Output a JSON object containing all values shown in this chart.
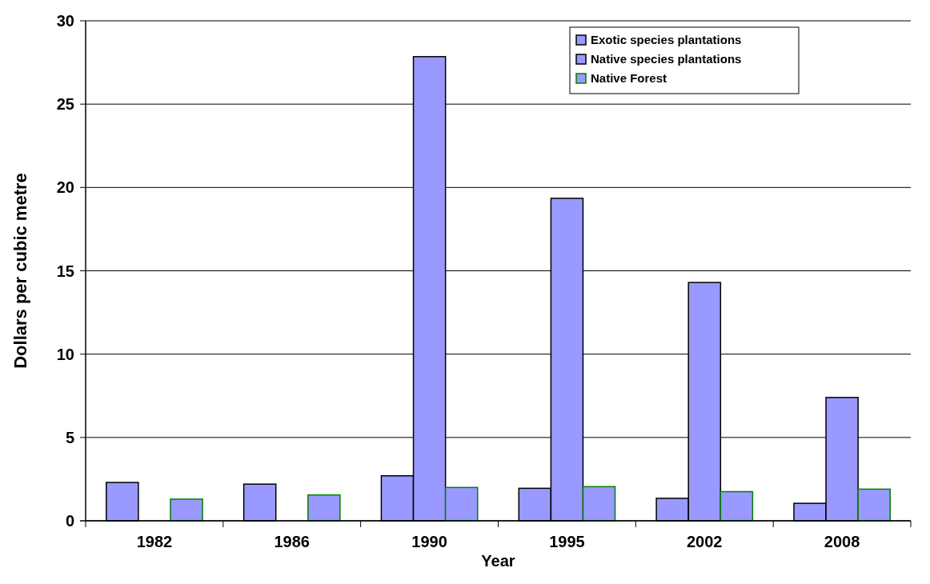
{
  "chart_data": {
    "type": "bar",
    "xlabel": "Year",
    "ylabel": "Dollars per cubic metre",
    "categories": [
      "1982",
      "1986",
      "1990",
      "1995",
      "2002",
      "2008"
    ],
    "series": [
      {
        "name": "Exotic species plantations",
        "color": "#9999ff",
        "values": [
          2.3,
          2.2,
          2.7,
          1.95,
          1.35,
          1.05
        ]
      },
      {
        "name": "Native species plantations",
        "color": "#9999ff",
        "values": [
          null,
          null,
          27.85,
          19.35,
          14.3,
          7.4
        ]
      },
      {
        "name": "Native Forest",
        "color": "#9999ff",
        "values": [
          1.3,
          1.55,
          2.0,
          2.05,
          1.75,
          1.9
        ]
      }
    ],
    "ylim": [
      0,
      30
    ],
    "yticks": [
      0,
      5,
      10,
      15,
      20,
      25,
      30
    ],
    "grid": "y",
    "legend": "top right"
  }
}
